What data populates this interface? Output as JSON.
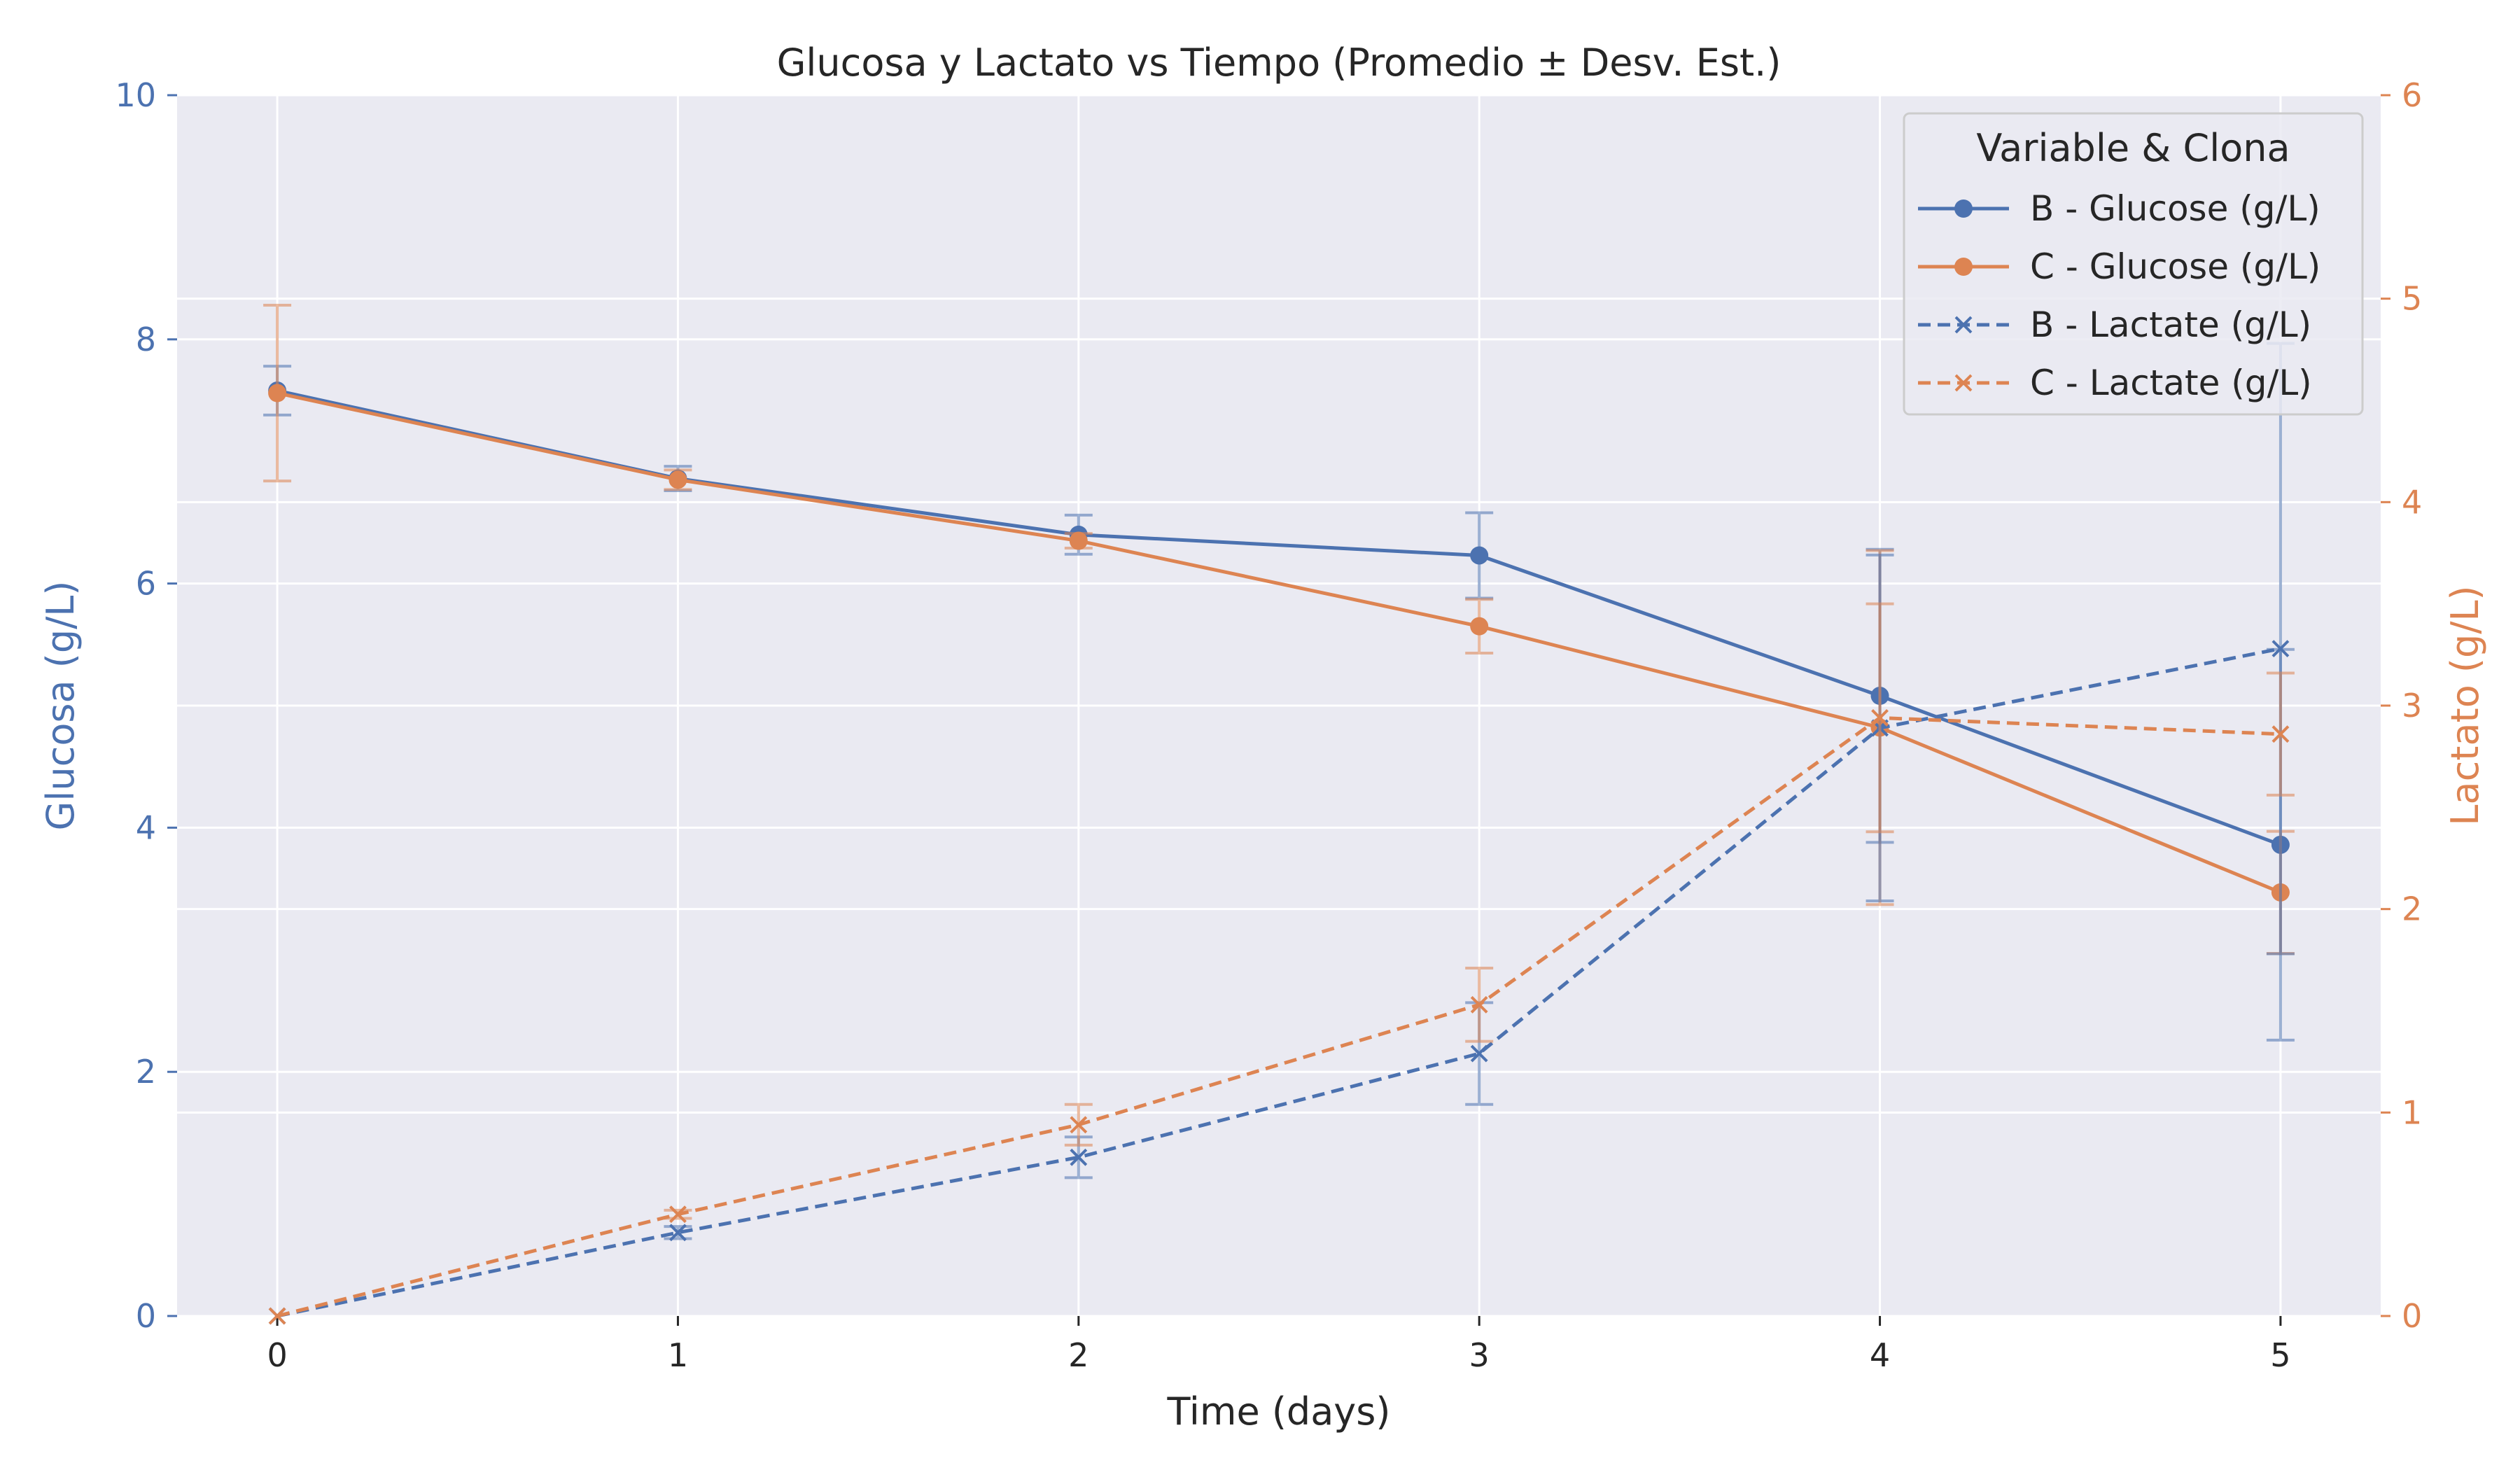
{
  "chart_data": {
    "type": "line",
    "title": "Glucosa y Lactato vs Tiempo (Promedio ± Desv. Est.)",
    "xlabel": "Time (days)",
    "ylabel_left": "Glucosa (g/L)",
    "ylabel_right": "Lactato (g/L)",
    "x": [
      0,
      1,
      2,
      3,
      4,
      5
    ],
    "xticks": [
      "0",
      "1",
      "2",
      "3",
      "4",
      "5"
    ],
    "xlim": [
      -0.25,
      5.25
    ],
    "ylim_left": [
      0,
      10
    ],
    "ylim_right": [
      0,
      6
    ],
    "yticks_left": [
      "0",
      "2",
      "4",
      "6",
      "8",
      "10"
    ],
    "yticks_right": [
      "0",
      "1",
      "2",
      "3",
      "4",
      "5",
      "6"
    ],
    "grid": true,
    "legend": {
      "title": "Variable & Clona",
      "placement": "top-right"
    },
    "colors": {
      "B": "#4c72b0",
      "C": "#dd8452",
      "background": "#eaeaf2",
      "grid": "#ffffff",
      "text": "#262626"
    },
    "series": [
      {
        "name": "B - Glucose (g/L)",
        "axis": "left",
        "color": "#4c72b0",
        "style": "solid",
        "marker": "circle",
        "values": [
          7.58,
          6.86,
          6.4,
          6.23,
          5.08,
          3.86
        ],
        "error": [
          0.2,
          0.1,
          0.16,
          0.35,
          1.2,
          1.6
        ]
      },
      {
        "name": "C - Glucose (g/L)",
        "axis": "left",
        "color": "#dd8452",
        "style": "solid",
        "marker": "circle",
        "values": [
          7.56,
          6.85,
          6.35,
          5.65,
          4.82,
          3.47
        ],
        "error": [
          0.72,
          0.08,
          0.06,
          0.22,
          1.45,
          0.5
        ]
      },
      {
        "name": "B - Lactate (g/L)",
        "axis": "right",
        "color": "#4c72b0",
        "style": "dashed",
        "marker": "x",
        "values": [
          0.0,
          0.41,
          0.78,
          1.29,
          2.89,
          3.28
        ],
        "error": [
          0.0,
          0.03,
          0.1,
          0.25,
          0.85,
          1.5
        ]
      },
      {
        "name": "C - Lactate (g/L)",
        "axis": "right",
        "color": "#dd8452",
        "style": "dashed",
        "marker": "x",
        "values": [
          0.0,
          0.5,
          0.94,
          1.53,
          2.94,
          2.86
        ],
        "error": [
          0.0,
          0.02,
          0.1,
          0.18,
          0.56,
          0.3
        ]
      }
    ]
  }
}
